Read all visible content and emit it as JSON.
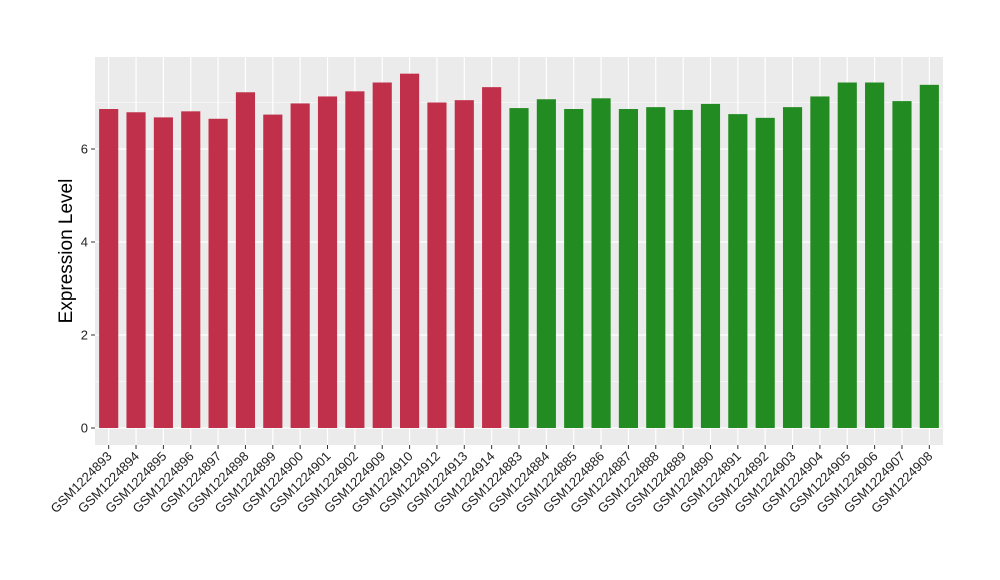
{
  "chart_data": {
    "type": "bar",
    "title": "",
    "xlabel": "",
    "ylabel": "Expression Level",
    "ylim": [
      0,
      7.85
    ],
    "yticks": [
      0,
      2,
      4,
      6
    ],
    "grid": true,
    "background": "#EBEBEB",
    "grid_color": "#FFFFFF",
    "categories": [
      "GSM1224893",
      "GSM1224894",
      "GSM1224895",
      "GSM1224896",
      "GSM1224897",
      "GSM1224898",
      "GSM1224899",
      "GSM1224900",
      "GSM1224901",
      "GSM1224902",
      "GSM1224909",
      "GSM1224910",
      "GSM1224912",
      "GSM1224913",
      "GSM1224914",
      "GSM1224883",
      "GSM1224884",
      "GSM1224885",
      "GSM1224886",
      "GSM1224887",
      "GSM1224888",
      "GSM1224889",
      "GSM1224890",
      "GSM1224891",
      "GSM1224892",
      "GSM1224903",
      "GSM1224904",
      "GSM1224905",
      "GSM1224906",
      "GSM1224907",
      "GSM1224908"
    ],
    "values": [
      6.86,
      6.79,
      6.68,
      6.81,
      6.65,
      7.22,
      6.74,
      6.98,
      7.13,
      7.24,
      7.43,
      7.62,
      7.0,
      7.05,
      7.33,
      6.88,
      7.07,
      6.86,
      7.09,
      6.86,
      6.9,
      6.84,
      6.97,
      6.75,
      6.67,
      6.9,
      7.13,
      7.43,
      7.43,
      7.03,
      7.38
    ],
    "colors": [
      "#C1304A",
      "#C1304A",
      "#C1304A",
      "#C1304A",
      "#C1304A",
      "#C1304A",
      "#C1304A",
      "#C1304A",
      "#C1304A",
      "#C1304A",
      "#C1304A",
      "#C1304A",
      "#C1304A",
      "#C1304A",
      "#C1304A",
      "#228B22",
      "#228B22",
      "#228B22",
      "#228B22",
      "#228B22",
      "#228B22",
      "#228B22",
      "#228B22",
      "#228B22",
      "#228B22",
      "#228B22",
      "#228B22",
      "#228B22",
      "#228B22",
      "#228B22",
      "#228B22"
    ]
  }
}
